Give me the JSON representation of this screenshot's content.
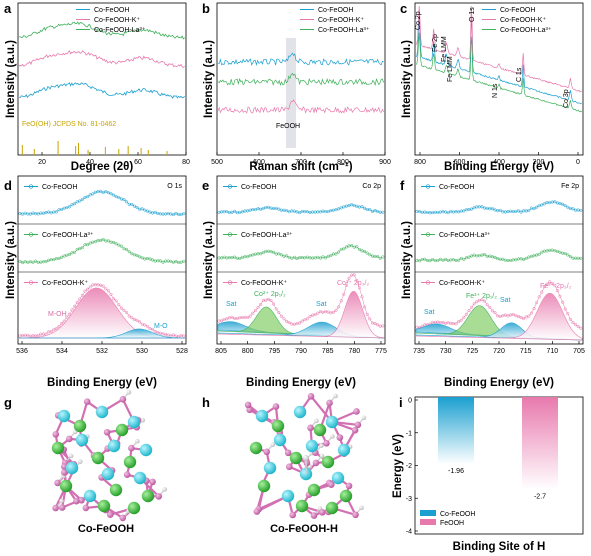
{
  "panels": {
    "a": {
      "label": "a"
    },
    "b": {
      "label": "b"
    },
    "c": {
      "label": "c"
    },
    "d": {
      "label": "d"
    },
    "e": {
      "label": "e"
    },
    "f": {
      "label": "f"
    },
    "g": {
      "label": "g",
      "caption": "Co-FeOOH"
    },
    "h": {
      "label": "h",
      "caption": "Co-FeOOH-H"
    },
    "i": {
      "label": "i"
    }
  },
  "colors": {
    "blue": "#1a9fd0",
    "pink": "#e879ad",
    "green": "#3fb05b",
    "gold": "#c9a400",
    "cyan_atom": "#2fd3e3",
    "green_atom": "#2eb830",
    "pink_atom": "#d36fb3",
    "h_atom": "#e8e8e8"
  },
  "chart_data": [
    {
      "panel": "a",
      "type": "line",
      "xlabel": "Degree (2θ)",
      "ylabel": "Intensity (a.u.)",
      "xlim": [
        10,
        80
      ],
      "xticks": [
        "20",
        "40",
        "60",
        "80"
      ],
      "series": [
        {
          "name": "Co-FeOOH",
          "color": "#1a9fd0"
        },
        {
          "name": "Co-FeOOH-K⁺",
          "color": "#e879ad"
        },
        {
          "name": "Co-FeOOH-La³⁺",
          "color": "#3fb05b"
        }
      ],
      "reference_label": "FeO(OH) JCPDS No. 81-0462",
      "reference_peaks": [
        11.8,
        16.8,
        26.7,
        34.0,
        35.2,
        39.2,
        46.4,
        52.0,
        55.9,
        61.3,
        64.3,
        72.1
      ]
    },
    {
      "panel": "b",
      "type": "line",
      "xlabel": "Raman shift (cm⁻¹)",
      "ylabel": "Intensity (a.u.)",
      "xlim": [
        500,
        900
      ],
      "xticks": [
        "500",
        "600",
        "700",
        "800",
        "900"
      ],
      "series": [
        {
          "name": "Co-FeOOH",
          "color": "#1a9fd0"
        },
        {
          "name": "Co-FeOOH-K⁺",
          "color": "#e879ad"
        },
        {
          "name": "Co-FeOOH-La³⁺",
          "color": "#3fb05b"
        }
      ],
      "annotation": "FeOOH",
      "highlight_x": 680
    },
    {
      "panel": "c",
      "type": "line",
      "xlabel": "Binding Energy (eV)",
      "ylabel": "Intensity (a.u.)",
      "xlim": [
        800,
        0
      ],
      "xticks": [
        "800",
        "600",
        "400",
        "200",
        "0"
      ],
      "series": [
        {
          "name": "Co-FeOOH",
          "color": "#1a9fd0"
        },
        {
          "name": "Co-FeOOH-K⁺",
          "color": "#e879ad"
        },
        {
          "name": "Co-FeOOH-La³⁺",
          "color": "#3fb05b"
        }
      ],
      "peak_labels": [
        "Co 2p",
        "Fe 2p",
        "Fe LMM",
        "Fe LMM",
        "O 1s",
        "N 1s",
        "C 1s",
        "Co 3p"
      ]
    },
    {
      "panel": "d",
      "type": "line",
      "xlabel": "Binding Energy (eV)",
      "ylabel": "Intensity (a.u.)",
      "xlim": [
        536,
        527
      ],
      "xticks": [
        "536",
        "534",
        "532",
        "530",
        "528"
      ],
      "series": [
        {
          "name": "Co-FeOOH",
          "color": "#1a9fd0"
        },
        {
          "name": "Co-FeOOH-La³⁺",
          "color": "#3fb05b"
        },
        {
          "name": "Co-FeOOH-K⁺",
          "color": "#e879ad"
        }
      ],
      "corner_label": "O 1s",
      "components": [
        "M-OH",
        "M-O"
      ]
    },
    {
      "panel": "e",
      "type": "line",
      "xlabel": "Binding Energy (eV)",
      "ylabel": "Intensity (a.u.)",
      "xlim": [
        805,
        775
      ],
      "xticks": [
        "805",
        "800",
        "795",
        "790",
        "785",
        "780",
        "775"
      ],
      "series": [
        {
          "name": "Co-FeOOH",
          "color": "#1a9fd0"
        },
        {
          "name": "Co-FeOOH-La³⁺",
          "color": "#3fb05b"
        },
        {
          "name": "Co-FeOOH-K⁺",
          "color": "#e879ad"
        }
      ],
      "corner_label": "Co 2p",
      "components": [
        "Sat",
        "Co²⁺ 2p₁/₂",
        "Sat",
        "Co²⁺ 2p₃/₂"
      ]
    },
    {
      "panel": "f",
      "type": "line",
      "xlabel": "Binding Energy (eV)",
      "ylabel": "Intensity (a.u.)",
      "xlim": [
        737,
        705
      ],
      "xticks": [
        "735",
        "730",
        "725",
        "720",
        "715",
        "710",
        "705"
      ],
      "series": [
        {
          "name": "Co-FeOOH",
          "color": "#1a9fd0"
        },
        {
          "name": "Co-FeOOH-La³⁺",
          "color": "#3fb05b"
        },
        {
          "name": "Co-FeOOH-K⁺",
          "color": "#e879ad"
        }
      ],
      "corner_label": "Fe 2p",
      "components": [
        "Sat",
        "Fe³⁺ 2p₁/₂",
        "Sat",
        "Fe³⁺ 2p₃/₂"
      ]
    },
    {
      "panel": "i",
      "type": "bar",
      "xlabel": "Binding Site of H",
      "ylabel": "Energy (eV)",
      "ylim": [
        -4,
        0
      ],
      "yticks": [
        "0",
        "-1",
        "-2",
        "-3",
        "-4"
      ],
      "categories": [
        "Co-FeOOH",
        "FeOOH"
      ],
      "values": [
        -1.96,
        -2.7
      ],
      "value_labels": [
        "-1.96",
        "-2.7"
      ],
      "series_colors": [
        "#1a9fd0",
        "#e879ad"
      ]
    }
  ]
}
